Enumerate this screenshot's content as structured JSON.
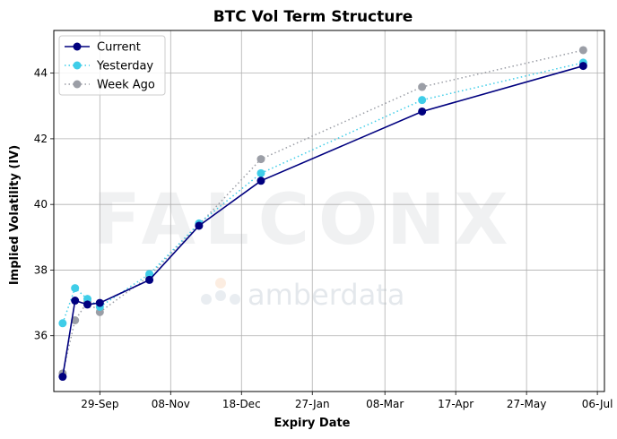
{
  "chart_data": {
    "type": "line",
    "title": "BTC Vol Term Structure",
    "xlabel": "Expiry Date",
    "ylabel": "Implied Volatility (IV)",
    "x_type": "date",
    "xlim": [
      "2023-09-03",
      "2024-07-10"
    ],
    "ylim": [
      34.3,
      45.3
    ],
    "grid": true,
    "legend_position": "upper left",
    "x_ticks": [
      {
        "date": "2023-09-29",
        "label": "29-Sep"
      },
      {
        "date": "2023-11-08",
        "label": "08-Nov"
      },
      {
        "date": "2023-12-18",
        "label": "18-Dec"
      },
      {
        "date": "2024-01-27",
        "label": "27-Jan"
      },
      {
        "date": "2024-03-08",
        "label": "08-Mar"
      },
      {
        "date": "2024-04-17",
        "label": "17-Apr"
      },
      {
        "date": "2024-05-27",
        "label": "27-May"
      },
      {
        "date": "2024-07-06",
        "label": "06-Jul"
      }
    ],
    "y_ticks": [
      36,
      38,
      40,
      42,
      44
    ],
    "series": [
      {
        "name": "Current",
        "color": "#00007f",
        "line_style": "solid",
        "points": [
          {
            "x": "2023-09-08",
            "y": 34.75
          },
          {
            "x": "2023-09-15",
            "y": 37.07
          },
          {
            "x": "2023-09-22",
            "y": 36.95
          },
          {
            "x": "2023-09-29",
            "y": 37.0
          },
          {
            "x": "2023-10-27",
            "y": 37.7
          },
          {
            "x": "2023-11-24",
            "y": 39.35
          },
          {
            "x": "2023-12-29",
            "y": 40.72
          },
          {
            "x": "2024-03-29",
            "y": 42.83
          },
          {
            "x": "2024-06-28",
            "y": 44.22
          }
        ]
      },
      {
        "name": "Yesterday",
        "color": "#3fcde8",
        "line_style": "dotted",
        "points": [
          {
            "x": "2023-09-08",
            "y": 36.38
          },
          {
            "x": "2023-09-15",
            "y": 37.45
          },
          {
            "x": "2023-09-22",
            "y": 37.12
          },
          {
            "x": "2023-09-29",
            "y": 36.88
          },
          {
            "x": "2023-10-27",
            "y": 37.88
          },
          {
            "x": "2023-11-24",
            "y": 39.42
          },
          {
            "x": "2023-12-29",
            "y": 40.95
          },
          {
            "x": "2024-03-29",
            "y": 43.18
          },
          {
            "x": "2024-06-28",
            "y": 44.32
          }
        ]
      },
      {
        "name": "Week Ago",
        "color": "#9b9ea6",
        "line_style": "dotted",
        "points": [
          {
            "x": "2023-09-08",
            "y": 34.85
          },
          {
            "x": "2023-09-15",
            "y": 36.47
          },
          {
            "x": "2023-09-22",
            "y": 37.03
          },
          {
            "x": "2023-09-29",
            "y": 36.72
          },
          {
            "x": "2023-10-27",
            "y": 37.82
          },
          {
            "x": "2023-11-24",
            "y": 39.38
          },
          {
            "x": "2023-12-29",
            "y": 41.38
          },
          {
            "x": "2024-03-29",
            "y": 43.58
          },
          {
            "x": "2024-06-28",
            "y": 44.7
          }
        ]
      }
    ],
    "watermarks": [
      "FALCONX",
      "amberdata"
    ]
  }
}
